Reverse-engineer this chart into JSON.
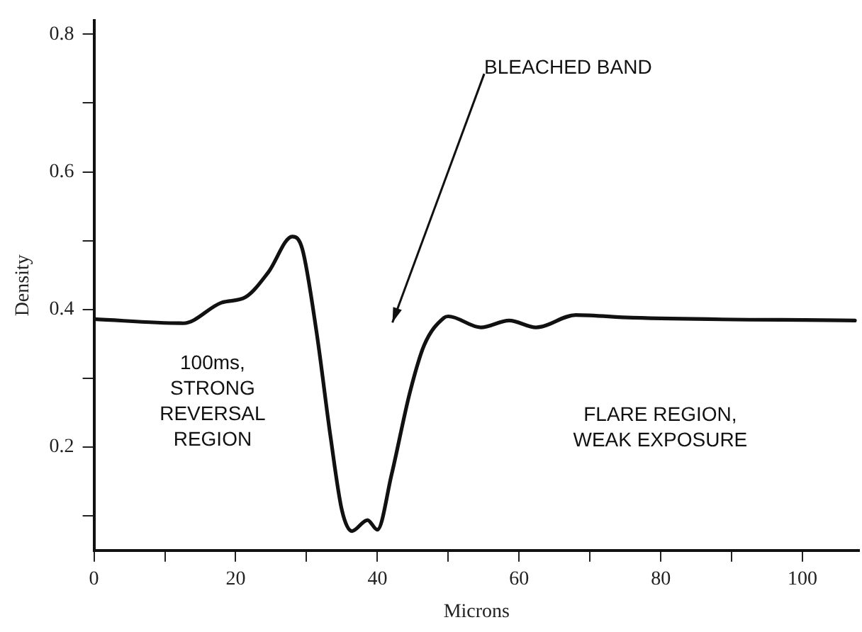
{
  "chart_data": {
    "type": "line",
    "xlabel": "Microns",
    "ylabel": "Density",
    "x": [
      0,
      12.6,
      18,
      21.4,
      24.6,
      28,
      29.4,
      31.4,
      33.4,
      35,
      36.4,
      38.6,
      40,
      42,
      44.6,
      46.6,
      49.4,
      50,
      54.6,
      58.6,
      62.4,
      68,
      76,
      107.4
    ],
    "series": [
      {
        "color": "#111111",
        "values": [
          0.386,
          0.38,
          0.41,
          0.418,
          0.454,
          0.506,
          0.488,
          0.368,
          0.214,
          0.108,
          0.078,
          0.094,
          0.08,
          0.16,
          0.28,
          0.348,
          0.388,
          0.39,
          0.374,
          0.384,
          0.374,
          0.392,
          0.388,
          0.384
        ]
      }
    ],
    "xlim": [
      0,
      108
    ],
    "xticks": [
      0,
      {
        "value": 10,
        "label": null
      },
      20,
      {
        "value": 30,
        "label": null
      },
      40,
      {
        "value": 50,
        "label": null
      },
      60,
      {
        "value": 70,
        "label": null
      },
      80,
      {
        "value": 90,
        "label": null
      },
      100
    ],
    "ylim": [
      0.05,
      0.82
    ],
    "yticks": [
      {
        "value": 0.1,
        "label": null
      },
      0.2,
      {
        "value": 0.3,
        "label": null
      },
      0.4,
      {
        "value": 0.5,
        "label": null
      },
      0.6,
      {
        "value": 0.7,
        "label": null
      },
      0.8
    ],
    "annotations": [
      "BLEACHED BAND",
      "100ms,\nSTRONG\nREVERSAL\nREGION",
      "FLARE REGION,\nWEAK EXPOSURE"
    ],
    "grid": false,
    "legend": false,
    "marker": "none",
    "line_style": "solid"
  }
}
